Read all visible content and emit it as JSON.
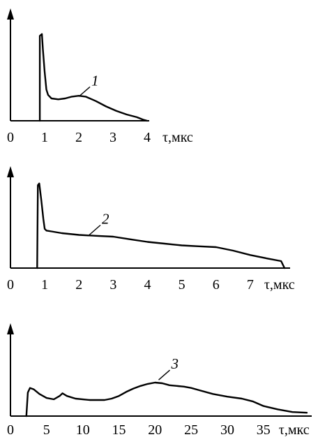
{
  "colors": {
    "ink": "#000000",
    "background": "#ffffff"
  },
  "chart_data": [
    {
      "type": "line",
      "xunit": "τ,мкс",
      "ticks": [
        0,
        1,
        2,
        3,
        4
      ],
      "xlim": [
        0,
        4
      ],
      "curve_label": "1",
      "label_at": [
        2.0,
        0.27
      ],
      "grid": false,
      "points": [
        [
          0.86,
          0.0
        ],
        [
          0.86,
          0.95
        ],
        [
          0.92,
          0.97
        ],
        [
          0.95,
          0.8
        ],
        [
          1.0,
          0.55
        ],
        [
          1.05,
          0.35
        ],
        [
          1.1,
          0.29
        ],
        [
          1.2,
          0.25
        ],
        [
          1.4,
          0.24
        ],
        [
          1.6,
          0.25
        ],
        [
          1.8,
          0.27
        ],
        [
          2.0,
          0.28
        ],
        [
          2.2,
          0.27
        ],
        [
          2.5,
          0.22
        ],
        [
          2.8,
          0.16
        ],
        [
          3.1,
          0.11
        ],
        [
          3.4,
          0.07
        ],
        [
          3.7,
          0.04
        ],
        [
          3.9,
          0.01
        ],
        [
          4.0,
          0.0
        ]
      ]
    },
    {
      "type": "line",
      "xunit": "τ,мкс",
      "ticks": [
        0,
        1,
        2,
        3,
        4,
        5,
        6,
        7
      ],
      "xlim": [
        0,
        8
      ],
      "curve_label": "2",
      "label_at": [
        2.3,
        0.38
      ],
      "grid": false,
      "points": [
        [
          0.78,
          0.0
        ],
        [
          0.8,
          0.95
        ],
        [
          0.84,
          0.97
        ],
        [
          0.9,
          0.78
        ],
        [
          0.96,
          0.56
        ],
        [
          1.0,
          0.45
        ],
        [
          1.05,
          0.43
        ],
        [
          1.2,
          0.42
        ],
        [
          1.5,
          0.4
        ],
        [
          2.0,
          0.38
        ],
        [
          2.5,
          0.37
        ],
        [
          3.0,
          0.36
        ],
        [
          3.5,
          0.33
        ],
        [
          4.0,
          0.3
        ],
        [
          4.5,
          0.28
        ],
        [
          5.0,
          0.26
        ],
        [
          5.5,
          0.25
        ],
        [
          6.0,
          0.24
        ],
        [
          6.5,
          0.2
        ],
        [
          7.0,
          0.15
        ],
        [
          7.5,
          0.11
        ],
        [
          7.9,
          0.08
        ],
        [
          8.0,
          0.0
        ]
      ]
    },
    {
      "type": "line",
      "xunit": "τ,мкс",
      "ticks": [
        0,
        5,
        10,
        15,
        20,
        25,
        30,
        35
      ],
      "xlim": [
        0,
        41
      ],
      "curve_label": "3",
      "label_at": [
        20.5,
        0.54
      ],
      "grid": false,
      "points": [
        [
          2.2,
          0.0
        ],
        [
          2.4,
          0.35
        ],
        [
          2.7,
          0.42
        ],
        [
          3.2,
          0.4
        ],
        [
          4.0,
          0.33
        ],
        [
          5.0,
          0.27
        ],
        [
          6.0,
          0.25
        ],
        [
          6.8,
          0.3
        ],
        [
          7.2,
          0.34
        ],
        [
          7.8,
          0.3
        ],
        [
          9.0,
          0.26
        ],
        [
          11.0,
          0.24
        ],
        [
          13.0,
          0.24
        ],
        [
          14.0,
          0.26
        ],
        [
          15.0,
          0.3
        ],
        [
          16.0,
          0.36
        ],
        [
          17.0,
          0.41
        ],
        [
          18.0,
          0.45
        ],
        [
          19.0,
          0.48
        ],
        [
          20.0,
          0.5
        ],
        [
          21.0,
          0.49
        ],
        [
          22.0,
          0.46
        ],
        [
          24.0,
          0.44
        ],
        [
          25.0,
          0.42
        ],
        [
          26.0,
          0.39
        ],
        [
          28.0,
          0.33
        ],
        [
          30.0,
          0.29
        ],
        [
          32.0,
          0.26
        ],
        [
          33.5,
          0.22
        ],
        [
          35.0,
          0.15
        ],
        [
          37.0,
          0.1
        ],
        [
          39.0,
          0.06
        ],
        [
          41.0,
          0.05
        ]
      ]
    }
  ]
}
